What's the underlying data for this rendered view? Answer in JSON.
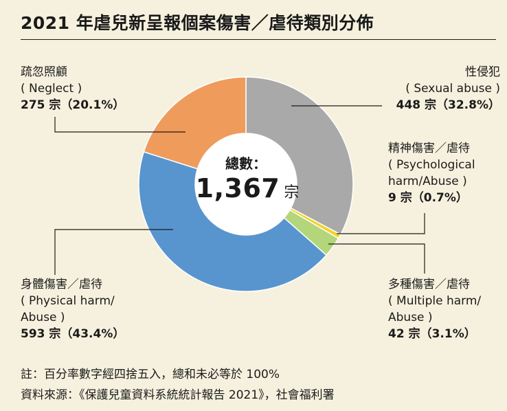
{
  "title": "2021 年虐兒新呈報個案傷害／虐待類別分佈",
  "center": {
    "label": "總數：",
    "total": "1,367",
    "unit": "宗"
  },
  "labels": {
    "sexual": {
      "zh": "性侵犯",
      "en": "( Sexual abuse )",
      "val": "448 宗（32.8%）"
    },
    "psych": {
      "zh": "精神傷害／虐待",
      "en1": "( Psychological",
      "en2": "harm/Abuse )",
      "val": "9 宗（0.7%）"
    },
    "multiple": {
      "zh": "多種傷害／虐待",
      "en1": "( Multiple harm/",
      "en2": "Abuse )",
      "val": "42 宗（3.1%）"
    },
    "physical": {
      "zh": "身體傷害／虐待",
      "en1": "( Physical harm/",
      "en2": "Abuse )",
      "val": "593 宗（43.4%）"
    },
    "neglect": {
      "zh": "疏忽照顧",
      "en": "( Neglect )",
      "val": "275 宗（20.1%）"
    }
  },
  "notes": {
    "note": "註：百分率數字經四捨五入，總和未必等於 100%",
    "source": "資料來源：《保護兒童資料系統統計報告 2021》，社會福利署"
  },
  "chart_data": {
    "type": "pie",
    "donut": true,
    "title": "2021 年虐兒新呈報個案傷害／虐待類別分佈",
    "total": 1367,
    "series": [
      {
        "name": "性侵犯 (Sexual abuse)",
        "value": 448,
        "percent": 32.8,
        "color": "#a9a9a9"
      },
      {
        "name": "精神傷害／虐待 (Psychological harm/Abuse)",
        "value": 9,
        "percent": 0.7,
        "color": "#f3d324"
      },
      {
        "name": "多種傷害／虐待 (Multiple harm/Abuse)",
        "value": 42,
        "percent": 3.1,
        "color": "#b3d67b"
      },
      {
        "name": "身體傷害／虐待 (Physical harm/Abuse)",
        "value": 593,
        "percent": 43.4,
        "color": "#5895ce"
      },
      {
        "name": "疏忽照顧 (Neglect)",
        "value": 275,
        "percent": 20.1,
        "color": "#ef9b5c"
      }
    ]
  }
}
